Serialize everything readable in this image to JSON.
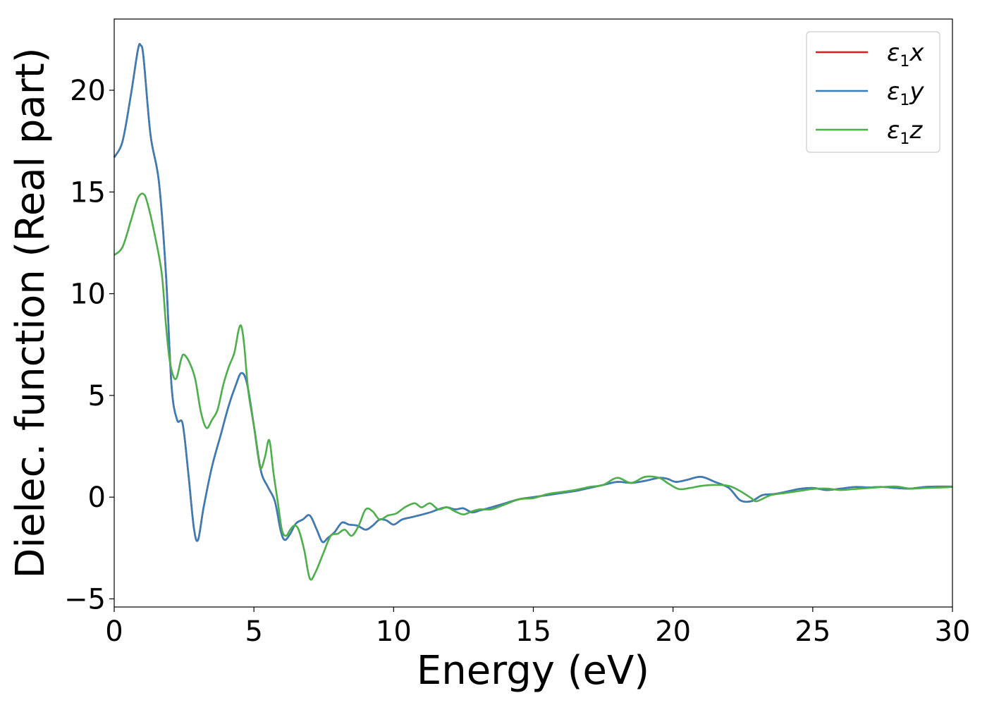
{
  "chart_data": {
    "type": "line",
    "xlabel": "Energy (eV)",
    "ylabel": "Dielec. function (Real part)",
    "xlim": [
      0,
      30
    ],
    "ylim": [
      -5.4,
      23.5
    ],
    "x_ticks": [
      0,
      5,
      10,
      15,
      20,
      25,
      30
    ],
    "y_ticks": [
      -5,
      0,
      5,
      10,
      15,
      20
    ],
    "x_tick_labels": [
      "0",
      "5",
      "10",
      "15",
      "20",
      "25",
      "30"
    ],
    "y_tick_labels": [
      "−5",
      "0",
      "5",
      "10",
      "15",
      "20"
    ],
    "grid": false,
    "legend_position": "top-right",
    "series": [
      {
        "name": "ε1x",
        "legend_base": "ε",
        "legend_sub": "1",
        "legend_suffix": "x",
        "color": "#e41a1c",
        "x": [
          0,
          0.3,
          0.6,
          0.85,
          0.95,
          1.05,
          1.3,
          1.6,
          1.85,
          2.05,
          2.25,
          2.45,
          2.65,
          2.85,
          3.0,
          3.2,
          3.5,
          3.8,
          4.1,
          4.35,
          4.55,
          4.75,
          5.0,
          5.25,
          5.5,
          5.75,
          5.95,
          6.1,
          6.3,
          6.5,
          6.75,
          7.0,
          7.25,
          7.45,
          7.65,
          7.9,
          8.15,
          8.4,
          8.7,
          9.0,
          9.25,
          9.5,
          9.75,
          10.0,
          10.3,
          10.6,
          10.9,
          11.3,
          11.6,
          11.9,
          12.2,
          12.5,
          12.8,
          13.1,
          13.5,
          14.0,
          14.5,
          15.0,
          15.5,
          16.0,
          16.5,
          17.0,
          17.5,
          18.0,
          18.5,
          19.0,
          19.5,
          19.8,
          20.1,
          20.5,
          21.0,
          21.5,
          22.0,
          22.4,
          22.8,
          23.2,
          23.6,
          24.0,
          24.5,
          25.0,
          25.5,
          26.0,
          26.5,
          27.0,
          27.5,
          28.0,
          28.5,
          29.0,
          29.5,
          30.0
        ],
        "y": [
          16.7,
          17.5,
          19.8,
          22.0,
          22.2,
          21.6,
          17.8,
          15.5,
          11.0,
          5.5,
          3.8,
          3.6,
          1.2,
          -1.5,
          -2.1,
          -0.5,
          1.5,
          3.0,
          4.5,
          5.5,
          6.1,
          5.6,
          3.5,
          1.3,
          0.5,
          -0.2,
          -1.6,
          -2.1,
          -1.8,
          -1.3,
          -1.1,
          -0.9,
          -1.6,
          -2.2,
          -2.0,
          -1.7,
          -1.25,
          -1.35,
          -1.4,
          -1.6,
          -1.4,
          -1.1,
          -1.15,
          -1.35,
          -1.1,
          -1.0,
          -0.9,
          -0.75,
          -0.6,
          -0.5,
          -0.6,
          -0.55,
          -0.75,
          -0.65,
          -0.5,
          -0.3,
          -0.1,
          0.0,
          0.1,
          0.2,
          0.3,
          0.45,
          0.6,
          0.75,
          0.7,
          0.8,
          0.95,
          0.9,
          0.75,
          0.85,
          1.0,
          0.75,
          0.45,
          -0.15,
          -0.2,
          0.1,
          0.15,
          0.25,
          0.4,
          0.45,
          0.35,
          0.42,
          0.5,
          0.48,
          0.5,
          0.45,
          0.42,
          0.5,
          0.52,
          0.52
        ]
      },
      {
        "name": "ε1y",
        "legend_base": "ε",
        "legend_sub": "1",
        "legend_suffix": "y",
        "color": "#377eb8",
        "x": [
          0,
          0.3,
          0.6,
          0.85,
          0.95,
          1.05,
          1.3,
          1.6,
          1.85,
          2.05,
          2.25,
          2.45,
          2.65,
          2.85,
          3.0,
          3.2,
          3.5,
          3.8,
          4.1,
          4.35,
          4.55,
          4.75,
          5.0,
          5.25,
          5.5,
          5.75,
          5.95,
          6.1,
          6.3,
          6.5,
          6.75,
          7.0,
          7.25,
          7.45,
          7.65,
          7.9,
          8.15,
          8.4,
          8.7,
          9.0,
          9.25,
          9.5,
          9.75,
          10.0,
          10.3,
          10.6,
          10.9,
          11.3,
          11.6,
          11.9,
          12.2,
          12.5,
          12.8,
          13.1,
          13.5,
          14.0,
          14.5,
          15.0,
          15.5,
          16.0,
          16.5,
          17.0,
          17.5,
          18.0,
          18.5,
          19.0,
          19.5,
          19.8,
          20.1,
          20.5,
          21.0,
          21.5,
          22.0,
          22.4,
          22.8,
          23.2,
          23.6,
          24.0,
          24.5,
          25.0,
          25.5,
          26.0,
          26.5,
          27.0,
          27.5,
          28.0,
          28.5,
          29.0,
          29.5,
          30.0
        ],
        "y": [
          16.7,
          17.5,
          19.8,
          22.0,
          22.2,
          21.6,
          17.8,
          15.5,
          11.0,
          5.5,
          3.8,
          3.6,
          1.2,
          -1.5,
          -2.1,
          -0.5,
          1.5,
          3.0,
          4.5,
          5.5,
          6.1,
          5.6,
          3.5,
          1.3,
          0.5,
          -0.2,
          -1.6,
          -2.1,
          -1.8,
          -1.3,
          -1.1,
          -0.9,
          -1.6,
          -2.2,
          -2.0,
          -1.7,
          -1.25,
          -1.35,
          -1.4,
          -1.6,
          -1.4,
          -1.1,
          -1.15,
          -1.35,
          -1.1,
          -1.0,
          -0.9,
          -0.75,
          -0.6,
          -0.5,
          -0.6,
          -0.55,
          -0.75,
          -0.65,
          -0.5,
          -0.3,
          -0.1,
          0.0,
          0.1,
          0.2,
          0.3,
          0.45,
          0.6,
          0.75,
          0.7,
          0.8,
          0.95,
          0.9,
          0.75,
          0.85,
          1.0,
          0.75,
          0.45,
          -0.15,
          -0.2,
          0.1,
          0.15,
          0.25,
          0.4,
          0.45,
          0.35,
          0.42,
          0.5,
          0.48,
          0.5,
          0.45,
          0.42,
          0.5,
          0.52,
          0.52
        ]
      },
      {
        "name": "ε1z",
        "legend_base": "ε",
        "legend_sub": "1",
        "legend_suffix": "z",
        "color": "#4daf4a",
        "x": [
          0,
          0.3,
          0.6,
          0.85,
          1.05,
          1.2,
          1.45,
          1.7,
          1.85,
          2.0,
          2.2,
          2.4,
          2.5,
          2.7,
          2.9,
          3.1,
          3.3,
          3.5,
          3.7,
          3.9,
          4.1,
          4.3,
          4.45,
          4.55,
          4.65,
          4.8,
          5.0,
          5.15,
          5.25,
          5.4,
          5.55,
          5.7,
          5.85,
          6.0,
          6.15,
          6.3,
          6.45,
          6.6,
          6.8,
          7.0,
          7.2,
          7.5,
          7.75,
          8.0,
          8.25,
          8.5,
          8.75,
          9.0,
          9.25,
          9.5,
          9.8,
          10.1,
          10.4,
          10.75,
          11.0,
          11.3,
          11.6,
          11.9,
          12.2,
          12.5,
          12.8,
          13.1,
          13.5,
          14.0,
          14.5,
          15.0,
          15.5,
          16.0,
          16.5,
          17.0,
          17.5,
          18.0,
          18.5,
          19.0,
          19.5,
          19.8,
          20.2,
          20.6,
          21.0,
          21.5,
          22.0,
          22.4,
          22.8,
          23.0,
          23.5,
          24.0,
          24.5,
          25.0,
          25.5,
          26.0,
          26.5,
          27.0,
          27.5,
          28.0,
          28.5,
          29.0,
          29.5,
          30.0
        ],
        "y": [
          11.9,
          12.3,
          13.6,
          14.7,
          14.9,
          14.4,
          12.9,
          11.0,
          8.5,
          6.6,
          5.8,
          6.8,
          7.0,
          6.6,
          5.8,
          4.2,
          3.4,
          3.8,
          4.3,
          5.5,
          6.4,
          7.1,
          8.2,
          8.4,
          7.5,
          5.2,
          3.5,
          2.0,
          1.4,
          2.0,
          2.8,
          1.2,
          -0.2,
          -1.6,
          -1.9,
          -1.6,
          -1.4,
          -1.6,
          -2.6,
          -4.0,
          -3.7,
          -2.7,
          -1.9,
          -1.8,
          -1.6,
          -1.9,
          -1.4,
          -0.6,
          -0.7,
          -1.1,
          -0.9,
          -0.8,
          -0.5,
          -0.3,
          -0.5,
          -0.3,
          -0.6,
          -0.5,
          -0.7,
          -0.85,
          -0.7,
          -0.6,
          -0.6,
          -0.35,
          -0.1,
          -0.05,
          0.15,
          0.25,
          0.35,
          0.5,
          0.6,
          0.95,
          0.7,
          1.0,
          0.95,
          0.7,
          0.4,
          0.45,
          0.55,
          0.6,
          0.55,
          0.3,
          -0.05,
          -0.2,
          0.1,
          0.2,
          0.3,
          0.4,
          0.42,
          0.35,
          0.4,
          0.45,
          0.5,
          0.52,
          0.42,
          0.45,
          0.47,
          0.5
        ]
      }
    ]
  }
}
